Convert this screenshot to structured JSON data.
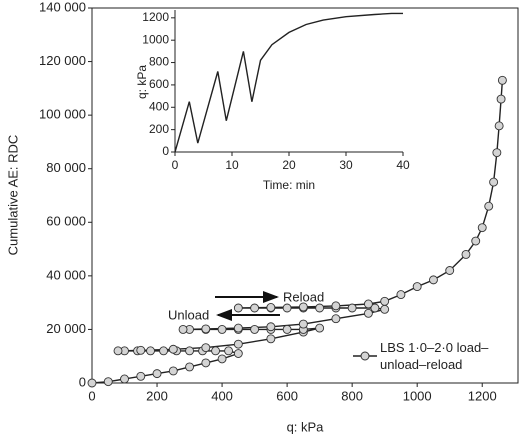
{
  "chart_data": [
    {
      "type": "line",
      "marker": "circle",
      "marker_color": "#d4d4d4",
      "color": "#222222",
      "x_label": "q: kPa",
      "y_label": "Cumulative AE: RDC",
      "xlim": [
        0,
        1310
      ],
      "ylim": [
        0,
        140000
      ],
      "xticks": [
        0,
        200,
        400,
        600,
        800,
        1000,
        1200
      ],
      "yticks": [
        0,
        {
          "value": 20000,
          "label": "20 000"
        },
        {
          "value": 40000,
          "label": "40 000"
        },
        {
          "value": 60000,
          "label": "60 000"
        },
        {
          "value": 80000,
          "label": "80 000"
        },
        {
          "value": 100000,
          "label": "100 000"
        },
        {
          "value": 120000,
          "label": "120 000"
        },
        {
          "value": 140000,
          "label": "140 000"
        }
      ],
      "annotations": [
        "Reload",
        "Unload"
      ],
      "legend": "bottom-right",
      "series": [
        {
          "name": "LBS 1·0–2·0 load–unload–reload",
          "x": [
            0,
            50,
            100,
            150,
            200,
            250,
            300,
            350,
            400,
            450,
            420,
            380,
            340,
            300,
            260,
            220,
            180,
            140,
            100,
            80,
            150,
            250,
            350,
            450,
            550,
            650,
            700,
            650,
            600,
            550,
            500,
            450,
            400,
            350,
            300,
            280,
            350,
            450,
            550,
            650,
            750,
            850,
            900,
            870,
            800,
            750,
            700,
            650,
            600,
            550,
            500,
            450,
            550,
            650,
            750,
            850,
            900,
            950,
            1000,
            1050,
            1100,
            1150,
            1180,
            1200,
            1220,
            1235,
            1245,
            1252,
            1258,
            1262
          ],
          "y": [
            0,
            500,
            1500,
            2500,
            3500,
            4500,
            6000,
            7500,
            9000,
            11000,
            12000,
            12000,
            12000,
            12000,
            12000,
            12000,
            12000,
            12000,
            12000,
            12000,
            12200,
            12600,
            13200,
            14500,
            16500,
            19000,
            20500,
            20000,
            20000,
            20000,
            20000,
            20000,
            20000,
            20000,
            20000,
            20000,
            20200,
            20500,
            21000,
            22000,
            24000,
            26000,
            27500,
            28000,
            28000,
            28000,
            28000,
            28000,
            28000,
            28000,
            28000,
            28000,
            28200,
            28400,
            28800,
            29500,
            30500,
            33000,
            36000,
            38500,
            42000,
            48000,
            53000,
            58000,
            66000,
            75000,
            86000,
            96000,
            106000,
            113000
          ]
        }
      ]
    },
    {
      "type": "line",
      "color": "#222222",
      "x_label": "Time: min",
      "y_label": "q: kPa",
      "xlim": [
        0,
        40
      ],
      "ylim": [
        0,
        1270
      ],
      "xticks": [
        0,
        10,
        20,
        30,
        40
      ],
      "yticks": [
        0,
        200,
        400,
        600,
        800,
        1000,
        1200
      ],
      "series": [
        {
          "name": "q",
          "x": [
            0,
            2.5,
            4,
            7.5,
            9,
            12,
            13.5,
            15,
            17,
            20,
            23,
            26,
            30,
            35,
            38,
            40
          ],
          "y": [
            0,
            450,
            80,
            720,
            280,
            900,
            450,
            820,
            960,
            1070,
            1140,
            1180,
            1210,
            1230,
            1240,
            1240
          ]
        }
      ]
    }
  ]
}
